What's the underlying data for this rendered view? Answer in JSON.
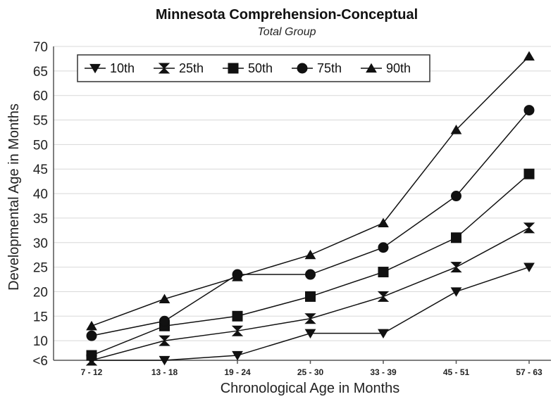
{
  "chart_data": {
    "type": "line",
    "title": "Minnesota Comprehension-Conceptual",
    "subtitle": "Total Group",
    "xlabel": "Chronological Age in Months",
    "ylabel": "Developmental Age in Months",
    "categories": [
      "7 - 12",
      "13 - 18",
      "19 - 24",
      "25 - 30",
      "33 - 39",
      "45 - 51",
      "57 - 63"
    ],
    "ylim": [
      6,
      70
    ],
    "yticks": [
      6,
      10,
      15,
      20,
      25,
      30,
      35,
      40,
      45,
      50,
      55,
      60,
      65,
      70
    ],
    "ytick_labels": [
      "<6",
      "10",
      "15",
      "20",
      "25",
      "30",
      "35",
      "40",
      "45",
      "50",
      "55",
      "60",
      "65",
      "70"
    ],
    "grid": true,
    "legend_position": "top-left",
    "series": [
      {
        "name": "10th",
        "marker": "triangle-down",
        "values": [
          6,
          6,
          7,
          11.5,
          11.5,
          20,
          25
        ]
      },
      {
        "name": "25th",
        "marker": "bowtie",
        "values": [
          6,
          10,
          12,
          14.5,
          19,
          25,
          33
        ]
      },
      {
        "name": "50th",
        "marker": "square",
        "values": [
          7,
          13,
          15,
          19,
          24,
          31,
          44
        ]
      },
      {
        "name": "75th",
        "marker": "circle",
        "values": [
          11,
          14,
          23.5,
          23.5,
          29,
          39.5,
          57
        ]
      },
      {
        "name": "90th",
        "marker": "triangle-up",
        "values": [
          13,
          18.5,
          23,
          27.5,
          34,
          53,
          68
        ]
      }
    ]
  }
}
